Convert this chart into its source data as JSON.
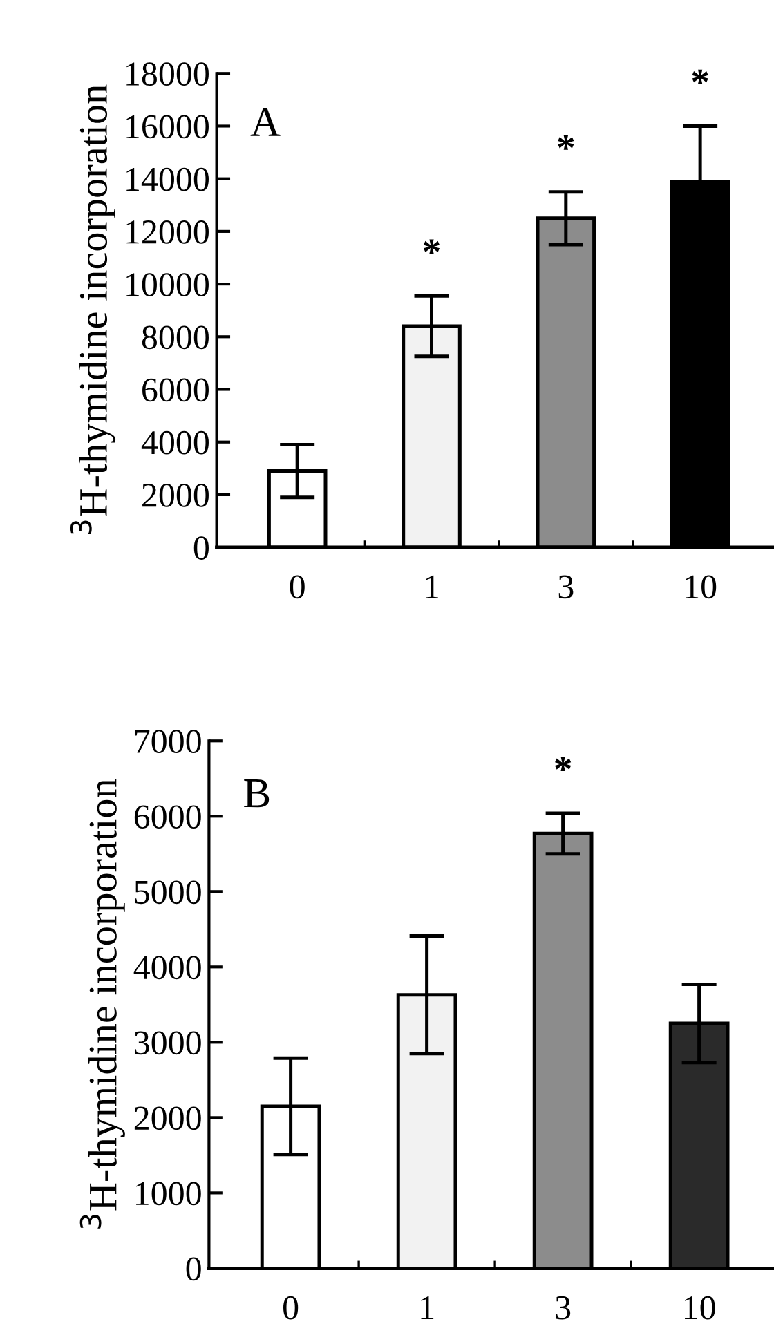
{
  "chart_data": [
    {
      "type": "bar",
      "ylabel": "$^{3}$H-thymidine incorporation",
      "categories": [
        "0",
        "1",
        "3",
        "10"
      ],
      "values": [
        2900,
        8400,
        12500,
        13900
      ],
      "errors": [
        1000,
        1150,
        1000,
        2100
      ],
      "colors": [
        "#ffffff",
        "#f2f2f2",
        "#8c8c8c",
        "#000000"
      ],
      "ylim": [
        0,
        18000
      ],
      "yticks": [
        0,
        2000,
        4000,
        6000,
        8000,
        10000,
        12000,
        14000,
        16000,
        18000
      ],
      "grid": false,
      "annotations": [
        "A",
        {
          "text": "*",
          "x": "1",
          "y": 9550
        },
        {
          "text": "*",
          "x": "3",
          "y": 13500
        },
        {
          "text": "*",
          "x": "10",
          "y": 16000
        }
      ]
    },
    {
      "type": "bar",
      "ylabel": "$^{3}$H-thymidine incorporation",
      "categories": [
        "0",
        "1",
        "3",
        "10"
      ],
      "values": [
        2150,
        3630,
        5770,
        3250
      ],
      "errors": [
        640,
        780,
        270,
        520
      ],
      "colors": [
        "#ffffff",
        "#f2f2f2",
        "#8c8c8c",
        "#2a2a2a"
      ],
      "ylim": [
        0,
        7000
      ],
      "yticks": [
        0,
        1000,
        2000,
        3000,
        4000,
        5000,
        6000,
        7000
      ],
      "grid": false,
      "annotations": [
        "B",
        {
          "text": "*",
          "x": "3",
          "y": 6040
        }
      ]
    }
  ]
}
